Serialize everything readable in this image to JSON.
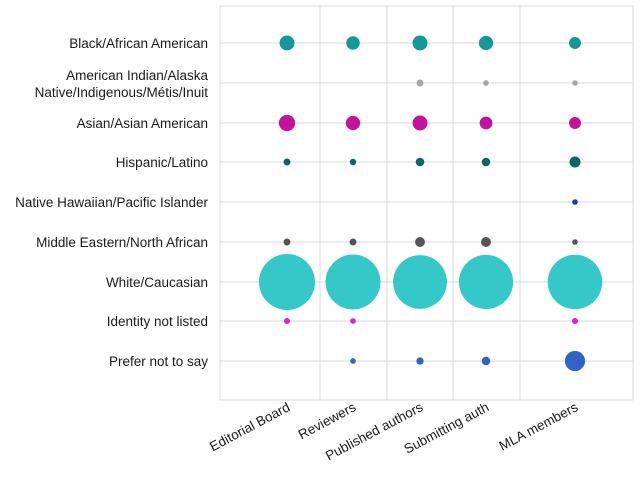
{
  "chart_data": {
    "type": "scatter",
    "title": "",
    "xlabel": "",
    "ylabel": "",
    "grid": true,
    "categories": [
      "Editorial Board",
      "Reviewers",
      "Published authors",
      "Submitting authors",
      "MLA members"
    ],
    "x_tick_labels": [
      "Editorial Board",
      "Reviewers",
      "Published authors",
      "Submitting auth",
      "MLA members"
    ],
    "rows": [
      {
        "label_lines": [
          "Black/African American"
        ],
        "color": "#13999a",
        "values": [
          5.5,
          4.5,
          5.5,
          5.0,
          3.5
        ]
      },
      {
        "label_lines": [
          "American Indian/Alaska",
          "Native/Indigenous/Métis/Inuit"
        ],
        "color": "#a6a6a6",
        "values": [
          0,
          0,
          1.2,
          0.8,
          0.5
        ]
      },
      {
        "label_lines": [
          "Asian/Asian American"
        ],
        "color": "#c4119e",
        "values": [
          6.5,
          5.0,
          5.5,
          4.0,
          3.5
        ]
      },
      {
        "label_lines": [
          "Hispanic/Latino"
        ],
        "color": "#0a6761",
        "values": [
          1.2,
          1.0,
          1.8,
          1.8,
          3.0
        ]
      },
      {
        "label_lines": [
          "Native Hawaiian/Pacific Islander"
        ],
        "color": "#1f3fa8",
        "values": [
          0,
          0,
          0,
          0,
          0.5
        ]
      },
      {
        "label_lines": [
          "Middle Eastern/North African"
        ],
        "color": "#555555",
        "values": [
          1.2,
          1.2,
          2.4,
          2.4,
          0.5
        ]
      },
      {
        "label_lines": [
          "White/Caucasian"
        ],
        "color": "#35c8c8",
        "values": [
          77,
          74,
          71,
          72,
          73
        ]
      },
      {
        "label_lines": [
          "Identity not listed"
        ],
        "color": "#d61fe0",
        "values": [
          0.9,
          0.7,
          0,
          0,
          0.9
        ]
      },
      {
        "label_lines": [
          "Prefer not to say"
        ],
        "color": "#2e63c7",
        "values": [
          0,
          0.8,
          1.3,
          1.8,
          10
        ]
      }
    ]
  }
}
